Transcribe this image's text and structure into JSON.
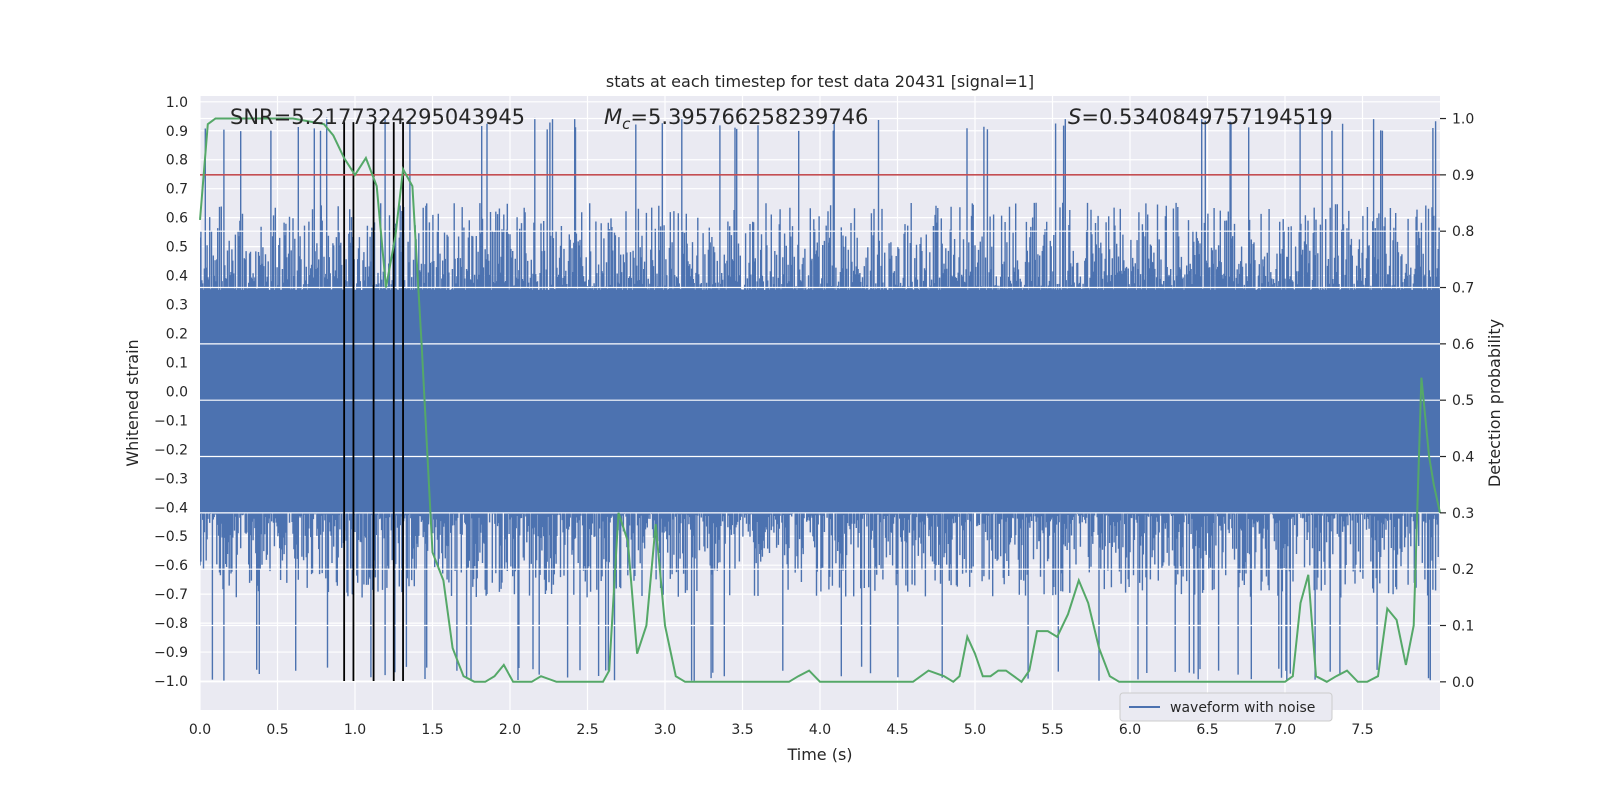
{
  "chart_data": {
    "type": "line",
    "title": "stats at each timestep for test data 20431 [signal=1]",
    "xlabel": "Time (s)",
    "ylabel": "Whitened strain",
    "y2label": "Detection probability",
    "xlim": [
      0,
      8
    ],
    "ylim": [
      -1.1,
      1.02
    ],
    "y2lim": [
      -0.05,
      1.04
    ],
    "x_ticks": [
      0.0,
      0.5,
      1.0,
      1.5,
      2.0,
      2.5,
      3.0,
      3.5,
      4.0,
      4.5,
      5.0,
      5.5,
      6.0,
      6.5,
      7.0,
      7.5
    ],
    "x_tick_labels": [
      "0.0",
      "0.5",
      "1.0",
      "1.5",
      "2.0",
      "2.5",
      "3.0",
      "3.5",
      "4.0",
      "4.5",
      "5.0",
      "5.5",
      "6.0",
      "6.5",
      "7.0",
      "7.5"
    ],
    "y_ticks": [
      1.0,
      0.9,
      0.8,
      0.7,
      0.6,
      0.5,
      0.4,
      0.3,
      0.2,
      0.1,
      0.0,
      -0.1,
      -0.2,
      -0.3,
      -0.4,
      -0.5,
      -0.6,
      -0.7,
      -0.8,
      -0.9,
      -1.0
    ],
    "y_tick_labels": [
      "1.0",
      "0.9",
      "0.8",
      "0.7",
      "0.6",
      "0.5",
      "0.4",
      "0.3",
      "0.2",
      "0.1",
      "0.0",
      "−0.1",
      "−0.2",
      "−0.3",
      "−0.4",
      "−0.5",
      "−0.6",
      "−0.7",
      "−0.8",
      "−0.9",
      "−1.0"
    ],
    "y2_ticks": [
      1.0,
      0.9,
      0.8,
      0.7,
      0.6,
      0.5,
      0.4,
      0.3,
      0.2,
      0.1,
      0.0
    ],
    "y2_tick_labels": [
      "1.0",
      "0.9",
      "0.8",
      "0.7",
      "0.6",
      "0.5",
      "0.4",
      "0.3",
      "0.2",
      "0.1",
      "0.0"
    ],
    "grid": true,
    "annotations": {
      "snr": "SNR=5.2177324295043945",
      "mc_symbol": "M",
      "mc_sub": "c",
      "mc_value": "=5.395766258239746",
      "s_symbol": "S",
      "s_value": "=0.5340849757194519"
    },
    "threshold_y2": 0.9,
    "event_markers_x": [
      0.93,
      0.99,
      1.12,
      1.25,
      1.31
    ],
    "event_marker_yrange": [
      -1.0,
      0.93
    ],
    "legend": {
      "label": "waveform with noise",
      "position": "lower-right"
    },
    "waveform": {
      "name": "waveform with noise",
      "envelope_upper": 0.35,
      "envelope_lower": -0.42,
      "spike_max": 0.95,
      "spike_min": -1.0
    },
    "probability": {
      "x": [
        0.0,
        0.05,
        0.1,
        0.2,
        0.4,
        0.6,
        0.8,
        0.86,
        0.93,
        1.0,
        1.07,
        1.14,
        1.2,
        1.26,
        1.31,
        1.37,
        1.43,
        1.5,
        1.57,
        1.63,
        1.7,
        1.77,
        1.84,
        1.9,
        1.96,
        2.02,
        2.08,
        2.14,
        2.2,
        2.3,
        2.4,
        2.5,
        2.6,
        2.64,
        2.7,
        2.76,
        2.82,
        2.88,
        2.94,
        3.0,
        3.07,
        3.13,
        3.2,
        3.3,
        3.4,
        3.5,
        3.6,
        3.7,
        3.8,
        3.86,
        3.93,
        4.0,
        4.1,
        4.2,
        4.3,
        4.4,
        4.5,
        4.6,
        4.7,
        4.8,
        4.86,
        4.9,
        4.95,
        5.0,
        5.05,
        5.1,
        5.15,
        5.2,
        5.25,
        5.3,
        5.35,
        5.4,
        5.47,
        5.53,
        5.6,
        5.67,
        5.73,
        5.8,
        5.87,
        5.93,
        6.0,
        6.2,
        6.4,
        6.6,
        6.8,
        6.9,
        7.0,
        7.05,
        7.1,
        7.15,
        7.2,
        7.27,
        7.33,
        7.4,
        7.47,
        7.53,
        7.6,
        7.66,
        7.72,
        7.78,
        7.83,
        7.88,
        7.93,
        7.96,
        8.0
      ],
      "y": [
        0.82,
        0.99,
        1.0,
        1.0,
        1.0,
        1.0,
        0.99,
        0.97,
        0.93,
        0.9,
        0.93,
        0.88,
        0.7,
        0.79,
        0.91,
        0.88,
        0.6,
        0.23,
        0.18,
        0.06,
        0.01,
        0.0,
        0.0,
        0.01,
        0.03,
        0.0,
        0.0,
        0.0,
        0.01,
        0.0,
        0.0,
        0.0,
        0.0,
        0.02,
        0.3,
        0.25,
        0.05,
        0.1,
        0.28,
        0.1,
        0.01,
        0.0,
        0.0,
        0.0,
        0.0,
        0.0,
        0.0,
        0.0,
        0.0,
        0.01,
        0.02,
        0.0,
        0.0,
        0.0,
        0.0,
        0.0,
        0.0,
        0.0,
        0.02,
        0.01,
        0.0,
        0.01,
        0.08,
        0.05,
        0.01,
        0.01,
        0.02,
        0.02,
        0.01,
        0.0,
        0.02,
        0.09,
        0.09,
        0.08,
        0.12,
        0.18,
        0.14,
        0.06,
        0.01,
        0.0,
        0.0,
        0.0,
        0.0,
        0.0,
        0.0,
        0.0,
        0.0,
        0.01,
        0.14,
        0.19,
        0.01,
        0.0,
        0.01,
        0.02,
        0.0,
        0.0,
        0.01,
        0.13,
        0.11,
        0.03,
        0.1,
        0.54,
        0.4,
        0.35,
        0.3
      ]
    },
    "colors": {
      "waveform": "#4c72b0",
      "probability": "#55a868",
      "threshold": "#c44e52",
      "markers": "#000000",
      "plot_bg": "#eaeaf2",
      "grid": "#ffffff"
    }
  }
}
